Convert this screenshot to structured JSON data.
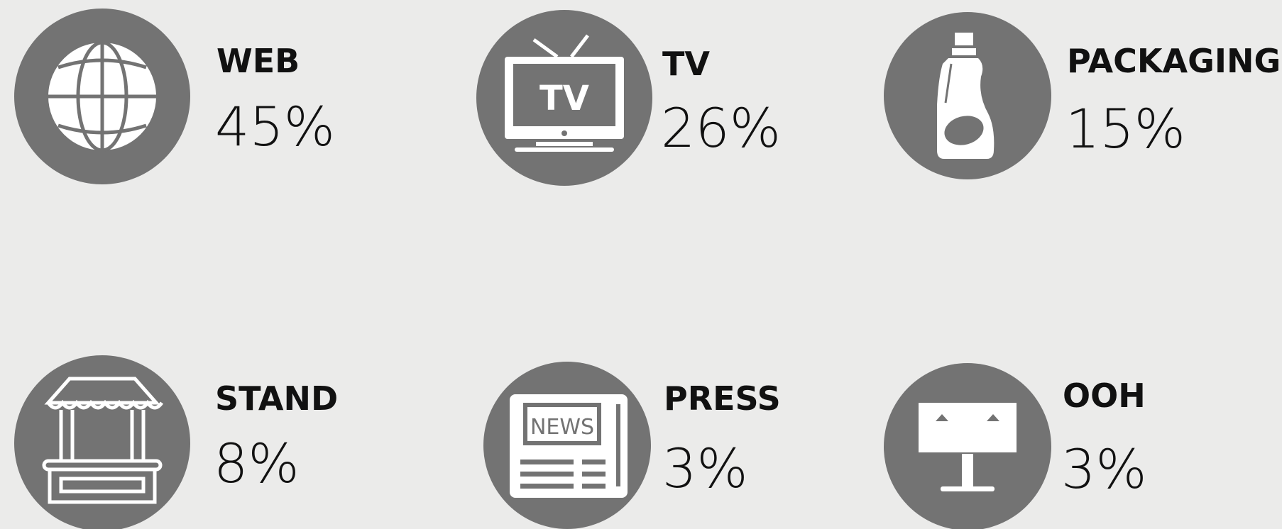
{
  "items": [
    {
      "label": "WEB",
      "value": "45%"
    },
    {
      "label": "TV",
      "value": "26%"
    },
    {
      "label": "PACKAGING",
      "value": "15%"
    },
    {
      "label": "STAND",
      "value": "8%"
    },
    {
      "label": "PRESS",
      "value": "3%"
    },
    {
      "label": "OOH",
      "value": "3%"
    }
  ]
}
